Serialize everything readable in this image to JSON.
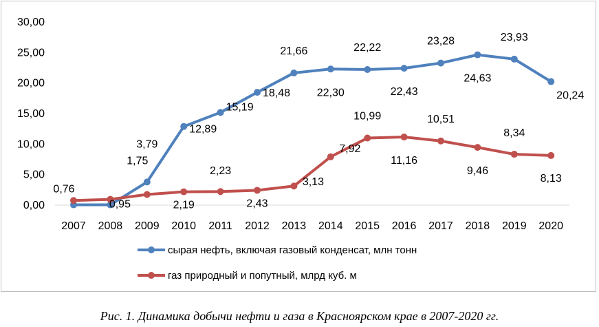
{
  "chart_data": {
    "type": "line",
    "title": "",
    "xlabel": "",
    "ylabel": "",
    "categories": [
      "2007",
      "2008",
      "2009",
      "2010",
      "2011",
      "2012",
      "2013",
      "2014",
      "2015",
      "2016",
      "2017",
      "2018",
      "2019",
      "2020"
    ],
    "ylim": [
      0,
      30
    ],
    "yticks": [
      "0,00",
      "5,00",
      "10,00",
      "15,00",
      "20,00",
      "25,00",
      "30,00"
    ],
    "grid": false,
    "legend_position": "bottom",
    "series": [
      {
        "name": "сырая нефть, включая газовый конденсат, млн тонн",
        "color": "#4f81bd",
        "values": [
          0.05,
          0.05,
          3.79,
          12.89,
          15.19,
          18.48,
          21.66,
          22.3,
          22.22,
          22.43,
          23.28,
          24.63,
          23.93,
          20.24
        ],
        "labels": [
          "",
          "",
          "3,79",
          "12,89",
          "15,19",
          "18,48",
          "21,66",
          "22,30",
          "22,22",
          "22,43",
          "23,28",
          "24,63",
          "23,93",
          "20,24"
        ]
      },
      {
        "name": "газ природный и попутный, млрд куб. м",
        "color": "#c0504d",
        "values": [
          0.76,
          0.95,
          1.75,
          2.19,
          2.23,
          2.43,
          3.13,
          7.92,
          10.99,
          11.16,
          10.51,
          9.46,
          8.34,
          8.13
        ],
        "labels": [
          "0,76",
          "0,95",
          "1,75",
          "2,19",
          "2,23",
          "2,43",
          "3,13",
          "7,92",
          "10,99",
          "11,16",
          "10,51",
          "9,46",
          "8,34",
          "8,13"
        ]
      }
    ]
  },
  "caption": "Рис. 1. Динамика добычи нефти и газа в Красноярском крае в 2007-2020 гг."
}
